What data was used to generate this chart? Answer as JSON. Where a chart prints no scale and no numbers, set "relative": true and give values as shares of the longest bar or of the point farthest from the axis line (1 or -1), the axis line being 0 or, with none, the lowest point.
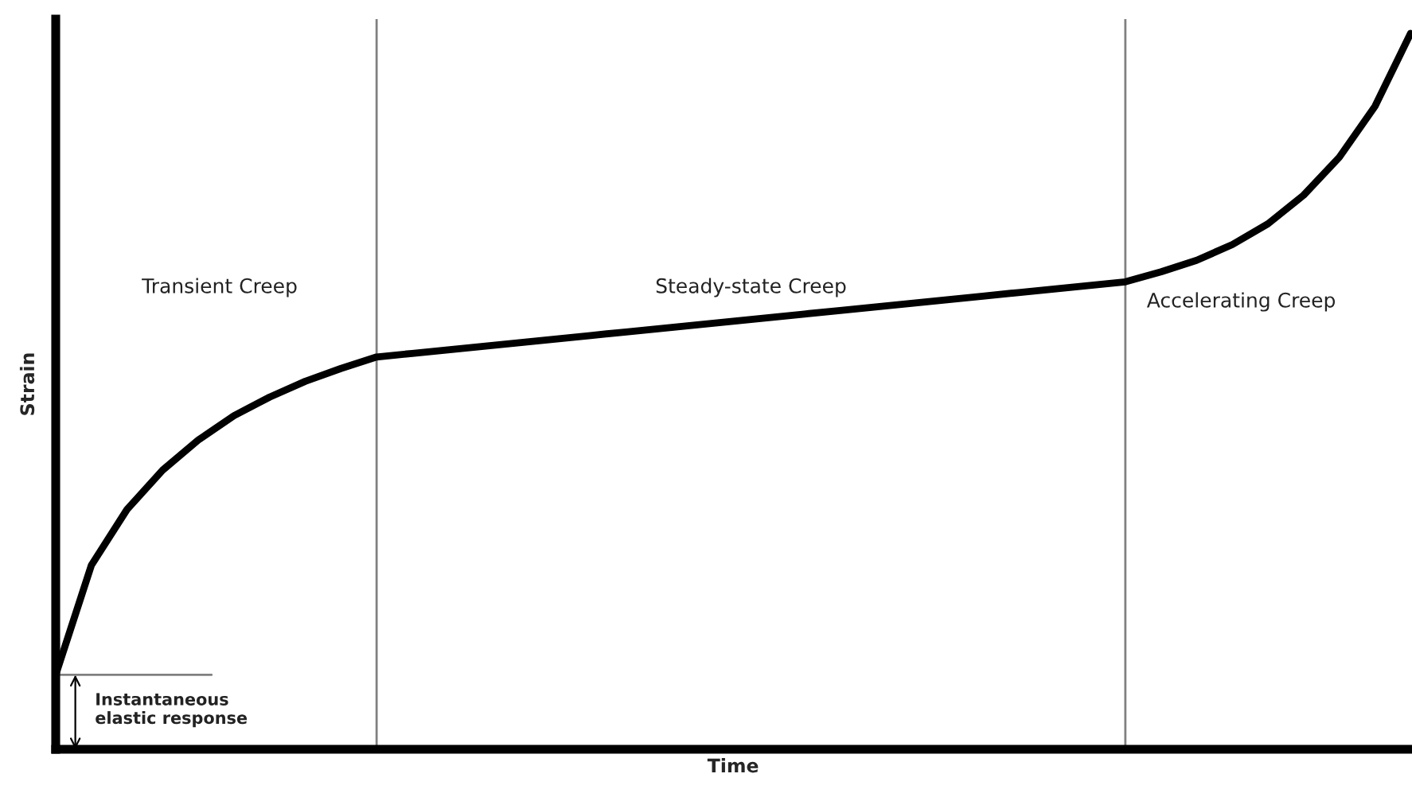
{
  "chart_data": {
    "type": "line",
    "relative": true,
    "xlabel": "Time",
    "ylabel": "Strain",
    "categories": [
      null,
      null,
      null,
      null,
      null,
      null,
      null,
      null,
      null,
      null,
      null,
      null,
      null,
      null,
      null,
      null,
      null,
      null,
      null,
      null,
      null,
      null,
      null,
      null,
      null,
      null,
      null,
      null,
      null,
      null,
      null,
      null,
      null,
      null,
      null,
      null,
      null,
      null,
      null
    ],
    "series": [
      {
        "color": "#000000",
        "values": [
          0.104,
          0.257,
          0.335,
          0.39,
          0.432,
          0.466,
          0.492,
          0.514,
          0.532,
          0.548,
          0.553,
          0.558,
          0.563,
          0.568,
          0.573,
          0.578,
          0.583,
          0.588,
          0.593,
          0.598,
          0.603,
          0.608,
          0.613,
          0.618,
          0.623,
          0.628,
          0.633,
          0.638,
          0.643,
          0.648,
          0.653,
          0.667,
          0.683,
          0.705,
          0.734,
          0.774,
          0.827,
          0.898,
          1
        ]
      }
    ],
    "ref_lines": [
      {
        "axis": "y",
        "value": 0.104,
        "color": "#808080"
      }
    ],
    "annotations": [
      "Transient Creep",
      "Steady-state Creep",
      "Accelerating Creep",
      "Instantaneous\nelastic response"
    ],
    "legend": false,
    "marker": "none",
    "line_style": "solid"
  }
}
